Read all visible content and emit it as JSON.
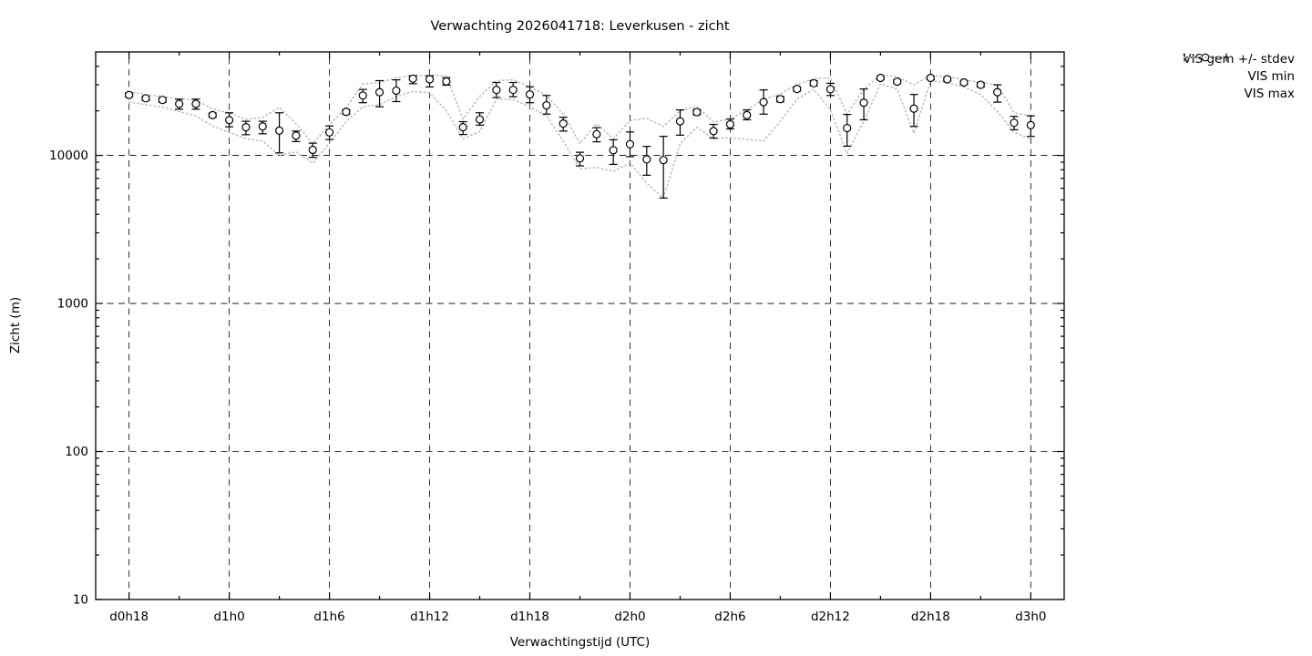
{
  "chart_data": {
    "type": "line",
    "title": "Verwachting 2026041718: Leverkusen - zicht",
    "xlabel": "Verwachtingstijd (UTC)",
    "ylabel": "Zicht (m)",
    "y_scale": "log",
    "ylim": [
      10,
      50000
    ],
    "y_ticks": [
      10,
      100,
      1000,
      10000
    ],
    "x_major_every": 6,
    "x_minor_every": 3,
    "x_axis_hours_padding": 2,
    "grid": true,
    "legend_position": "outside-top-right",
    "colors": {
      "series": "#000000",
      "envelope": "#b5b5b5",
      "grid": "#000000",
      "background": "#ffffff"
    },
    "x": [
      "d0h18",
      "d0h19",
      "d0h20",
      "d0h21",
      "d0h22",
      "d0h23",
      "d1h0",
      "d1h1",
      "d1h2",
      "d1h3",
      "d1h4",
      "d1h5",
      "d1h6",
      "d1h7",
      "d1h8",
      "d1h9",
      "d1h10",
      "d1h11",
      "d1h12",
      "d1h13",
      "d1h14",
      "d1h15",
      "d1h16",
      "d1h17",
      "d1h18",
      "d1h19",
      "d1h20",
      "d1h21",
      "d1h22",
      "d1h23",
      "d2h0",
      "d2h1",
      "d2h2",
      "d2h3",
      "d2h4",
      "d2h5",
      "d2h6",
      "d2h7",
      "d2h8",
      "d2h9",
      "d2h10",
      "d2h11",
      "d2h12",
      "d2h13",
      "d2h14",
      "d2h15",
      "d2h16",
      "d2h17",
      "d2h18",
      "d2h19",
      "d2h20",
      "d2h21",
      "d2h22",
      "d2h23",
      "d3h0"
    ],
    "x_major_tick_labels": [
      "d0h18",
      "d1h0",
      "d1h6",
      "d1h12",
      "d1h18",
      "d2h0",
      "d2h6",
      "d2h12",
      "d2h18",
      "d3h0"
    ],
    "series": [
      {
        "name": "VIS gem +/- stdev",
        "style": "points-errorbars",
        "values": [
          25600,
          24300,
          23700,
          22300,
          22300,
          18700,
          17300,
          15500,
          15700,
          14700,
          13600,
          10900,
          14300,
          19700,
          25400,
          26700,
          27400,
          33000,
          32700,
          31600,
          15500,
          17500,
          27700,
          27700,
          25800,
          21800,
          16400,
          9550,
          13900,
          10850,
          11900,
          9400,
          9300,
          17000,
          19600,
          14600,
          16200,
          18700,
          22900,
          24000,
          28100,
          30700,
          28000,
          15300,
          22700,
          33400,
          31500,
          20700,
          33400,
          32700,
          31100,
          30000,
          26700,
          16600,
          16000
        ],
        "err_hi": [
          26400,
          25100,
          24500,
          24000,
          24000,
          19300,
          19400,
          17000,
          17000,
          19400,
          14600,
          12100,
          15800,
          20400,
          27900,
          32000,
          32400,
          34500,
          34500,
          33500,
          16900,
          19400,
          31100,
          31100,
          29100,
          25400,
          18100,
          10500,
          15400,
          12750,
          14400,
          11500,
          13450,
          20300,
          20400,
          16200,
          17600,
          20300,
          27700,
          25000,
          29000,
          32000,
          30700,
          18900,
          28100,
          34300,
          32400,
          25800,
          34300,
          33600,
          32000,
          31000,
          30000,
          18350,
          18500
        ],
        "err_lo": [
          24800,
          23500,
          22900,
          20500,
          20500,
          18100,
          15600,
          13800,
          14000,
          10400,
          12400,
          9700,
          12800,
          19000,
          22700,
          21300,
          23100,
          30500,
          29000,
          29800,
          13850,
          16000,
          24600,
          24900,
          22700,
          19000,
          14600,
          8500,
          12350,
          8700,
          9800,
          7350,
          5150,
          13700,
          18800,
          13100,
          15100,
          17400,
          19000,
          23000,
          27200,
          29500,
          25400,
          11550,
          17400,
          32500,
          30600,
          15700,
          32500,
          31800,
          30200,
          29000,
          22900,
          14900,
          13450
        ]
      },
      {
        "name": "VIS min",
        "style": "dotted",
        "values": [
          22900,
          22000,
          21200,
          19800,
          18500,
          15800,
          14300,
          13000,
          12500,
          10000,
          10600,
          8850,
          12100,
          16900,
          21300,
          22000,
          25000,
          27000,
          26500,
          20000,
          13000,
          14500,
          24000,
          23800,
          21300,
          18500,
          12500,
          8100,
          8300,
          7800,
          8900,
          6500,
          5150,
          12000,
          15500,
          12900,
          13200,
          12800,
          12500,
          17000,
          24000,
          28000,
          20300,
          10300,
          17000,
          30400,
          28000,
          14100,
          32000,
          31000,
          29000,
          25800,
          19800,
          14300,
          12900
        ]
      },
      {
        "name": "VIS max",
        "style": "dotted",
        "values": [
          26800,
          25800,
          25000,
          24000,
          23800,
          20500,
          19400,
          17500,
          18000,
          21100,
          16400,
          12000,
          16100,
          21000,
          30400,
          31000,
          33500,
          34700,
          34700,
          34500,
          17600,
          25000,
          32000,
          32400,
          29100,
          25400,
          19100,
          12000,
          16400,
          13000,
          17200,
          17800,
          15700,
          20000,
          21500,
          16800,
          17600,
          20300,
          24000,
          26000,
          30000,
          33000,
          33500,
          19000,
          28000,
          35100,
          34000,
          30000,
          34800,
          34000,
          32500,
          31000,
          30000,
          19400,
          18500
        ]
      }
    ]
  }
}
